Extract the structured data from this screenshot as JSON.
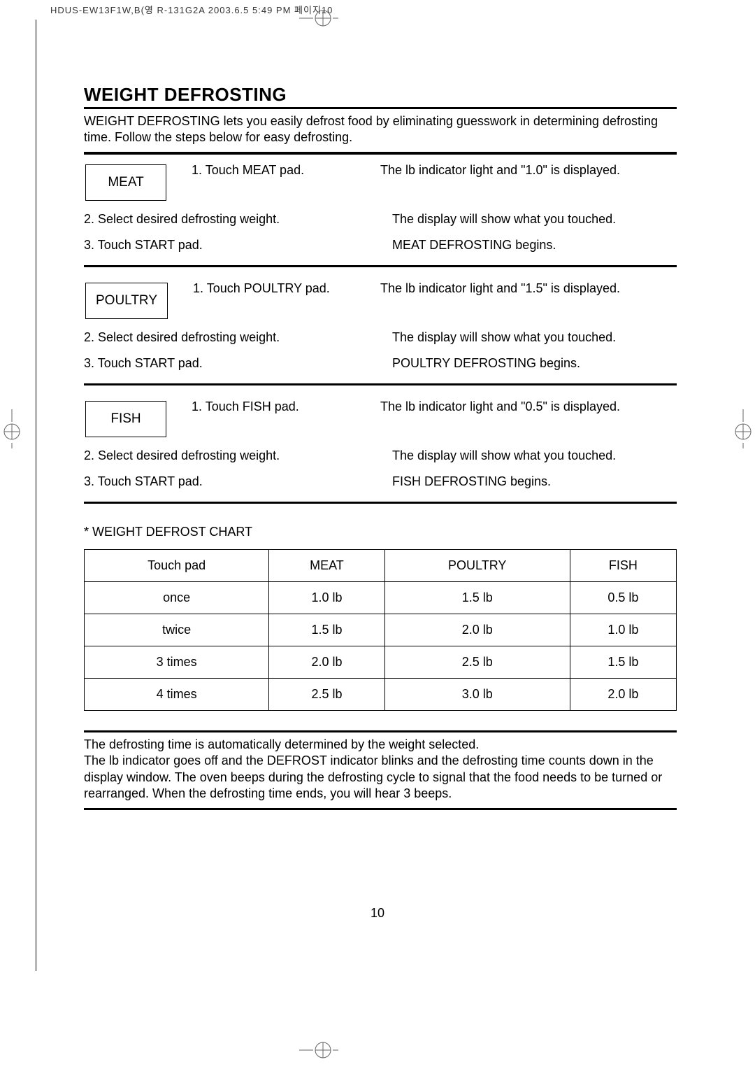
{
  "header_strip": "HDUS-EW13F1W,B(영 R-131G2A  2003.6.5 5:49 PM  페이지10",
  "title": "WEIGHT DEFROSTING",
  "intro": "WEIGHT DEFROSTING lets you easily defrost food by eliminating guesswork in determining defrosting time. Follow the steps below for easy defrosting.",
  "blocks": [
    {
      "pad": "MEAT",
      "step1": "1. Touch MEAT pad.",
      "resp1": "The lb indicator light and \"1.0\" is displayed.",
      "step2": "2. Select desired defrosting weight.",
      "resp2": "The display will show what you touched.",
      "step3": "3. Touch START pad.",
      "resp3": "MEAT DEFROSTING begins."
    },
    {
      "pad": "POULTRY",
      "step1": "1. Touch POULTRY pad.",
      "resp1": "The lb indicator light and \"1.5\" is displayed.",
      "step2": "2. Select desired defrosting weight.",
      "resp2": "The display will show what you touched.",
      "step3": "3. Touch START pad.",
      "resp3": "POULTRY DEFROSTING begins."
    },
    {
      "pad": "FISH",
      "step1": "1. Touch FISH pad.",
      "resp1": "The lb indicator light and \"0.5\" is displayed.",
      "step2": "2. Select desired defrosting weight.",
      "resp2": "The display will show what you touched.",
      "step3": "3. Touch START pad.",
      "resp3": "FISH DEFROSTING begins."
    }
  ],
  "chart_title": "* WEIGHT DEFROST CHART",
  "chart": {
    "columns": [
      "Touch pad",
      "MEAT",
      "POULTRY",
      "FISH"
    ],
    "rows": [
      [
        "once",
        "1.0 lb",
        "1.5 lb",
        "0.5 lb"
      ],
      [
        "twice",
        "1.5 lb",
        "2.0 lb",
        "1.0 lb"
      ],
      [
        "3 times",
        "2.0 lb",
        "2.5 lb",
        "1.5 lb"
      ],
      [
        "4 times",
        "2.5 lb",
        "3.0 lb",
        "2.0 lb"
      ]
    ]
  },
  "footer": "The defrosting time is automatically determined by the weight selected.\nThe lb indicator goes off and the DEFROST indicator blinks and the defrosting time counts down in the display window. The oven beeps during the defrosting cycle to signal that the food needs to be turned or rearranged. When the defrosting time ends, you will hear 3 beeps.",
  "page_number": "10"
}
